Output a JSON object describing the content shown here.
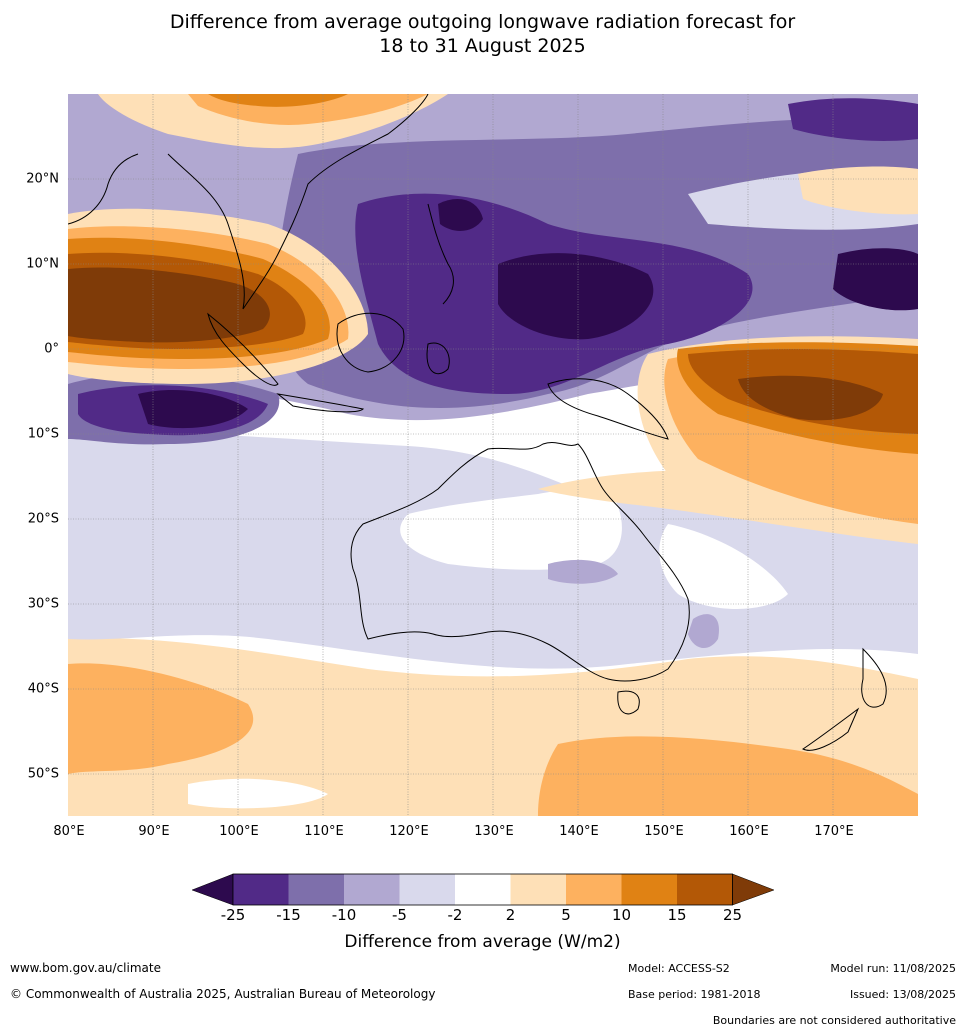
{
  "title": {
    "line1": "Difference from average outgoing longwave radiation forecast for",
    "line2": "18 to 31 August 2025"
  },
  "axes": {
    "lat_labels": [
      "20°N",
      "10°N",
      "0°",
      "10°S",
      "20°S",
      "30°S",
      "40°S",
      "50°S"
    ],
    "lon_labels": [
      "80°E",
      "90°E",
      "100°E",
      "110°E",
      "120°E",
      "130°E",
      "140°E",
      "150°E",
      "160°E",
      "170°E"
    ],
    "lon_range": [
      80,
      180
    ],
    "lat_range": [
      -55,
      30
    ]
  },
  "colorbar": {
    "ticks": [
      "-25",
      "-15",
      "-10",
      "-5",
      "-2",
      "2",
      "5",
      "10",
      "15",
      "25"
    ],
    "colors": [
      "#2d0a4e",
      "#512a87",
      "#7e6fab",
      "#b1a8d1",
      "#d9d9ec",
      "#ffffff",
      "#fee0b7",
      "#fdb15f",
      "#e08214",
      "#b35806",
      "#7f3b08"
    ],
    "label": "Difference from average (W/m2)"
  },
  "footer": {
    "website": "www.bom.gov.au/climate",
    "copyright": "© Commonwealth of Australia 2025, Australian Bureau of Meteorology",
    "model": "Model: ACCESS-S2",
    "base_period": "Base period: 1981-2018",
    "model_run": "Model run: 11/08/2025",
    "issued": "Issued: 13/08/2025",
    "disclaimer": "Boundaries are not considered authoritative"
  }
}
